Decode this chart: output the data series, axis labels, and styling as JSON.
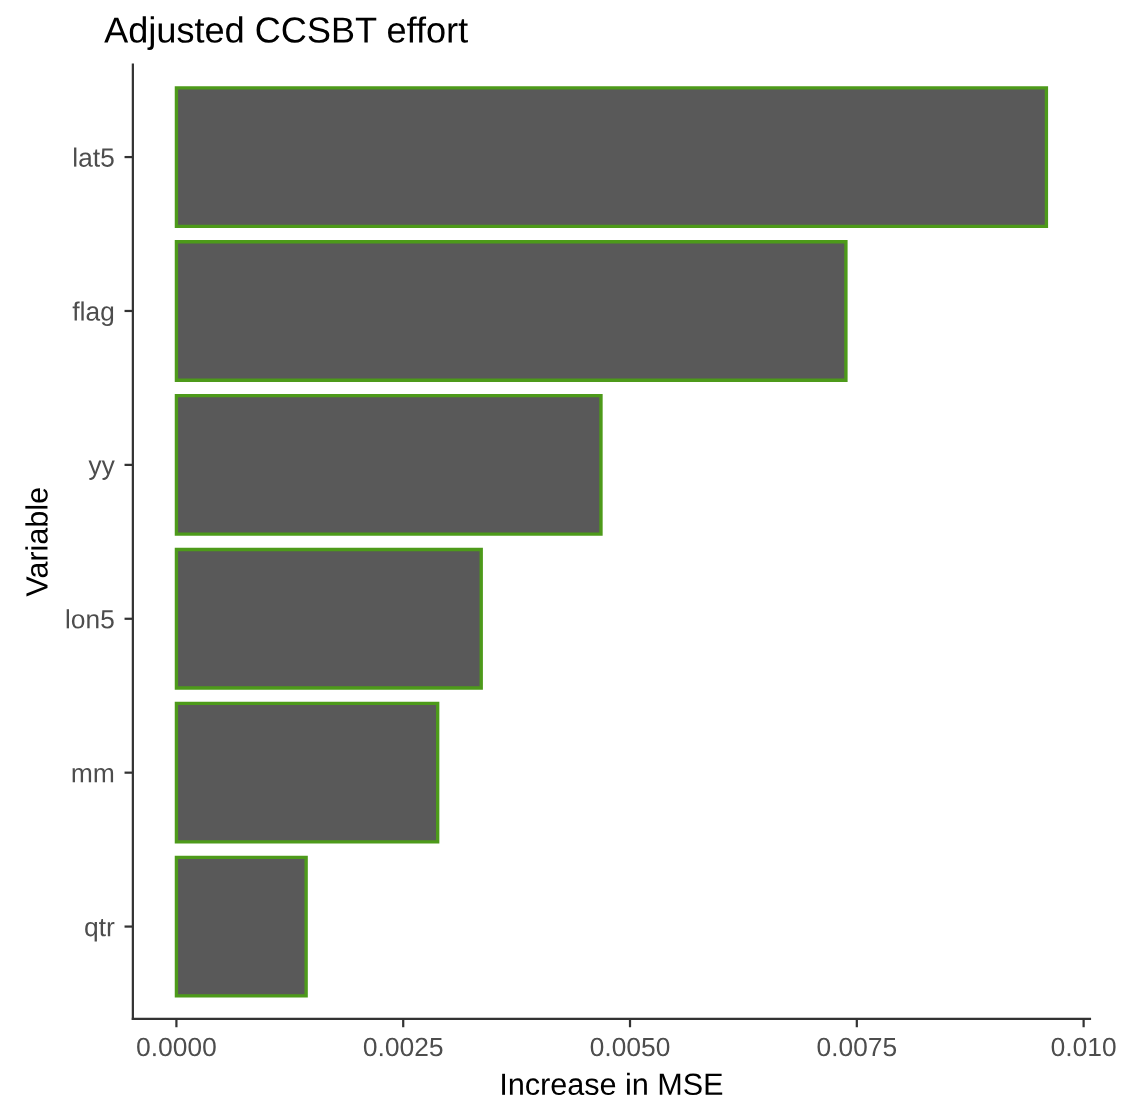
{
  "chart_data": {
    "type": "bar",
    "orientation": "horizontal",
    "title": "Adjusted CCSBT effort",
    "xlabel": "Increase in MSE",
    "ylabel": "Variable",
    "categories": [
      "lat5",
      "flag",
      "yy",
      "lon5",
      "mm",
      "qtr"
    ],
    "series": [
      {
        "color": "#595959",
        "values": [
          0.00959,
          0.00738,
          0.00468,
          0.00336,
          0.00288,
          0.00143
        ]
      }
    ],
    "xlim": [
      -0.00048,
      0.01007
    ],
    "xticks": [
      {
        "value": 0,
        "label": "0.0000"
      },
      {
        "value": 0.0025,
        "label": "0.0025"
      },
      {
        "value": 0.005,
        "label": "0.0050"
      },
      {
        "value": 0.0075,
        "label": "0.0075"
      },
      {
        "value": 0.01,
        "label": "0.010"
      }
    ],
    "grid": false,
    "legend": false
  }
}
